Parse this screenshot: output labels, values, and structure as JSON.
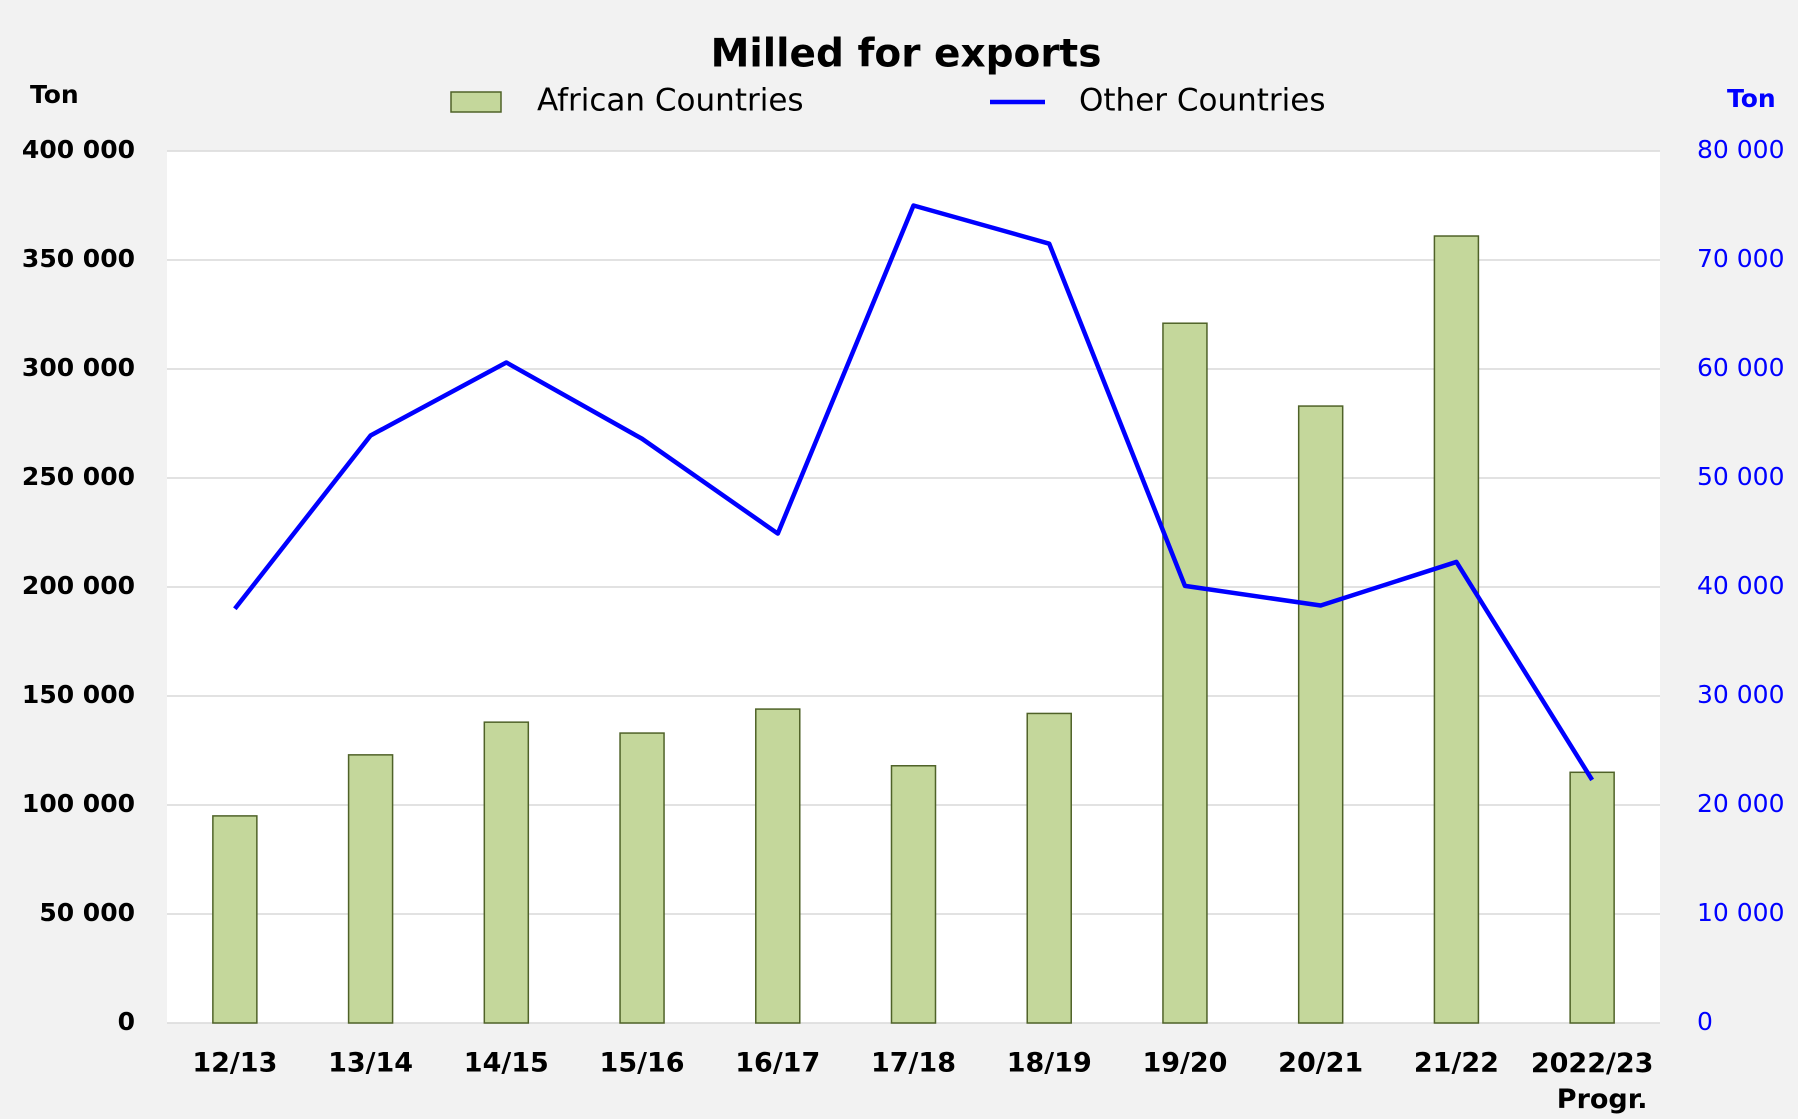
{
  "chart_data": {
    "type": "bar",
    "title": "Milled for exports",
    "y_label": "Ton",
    "y2_label": "Ton",
    "categories": [
      "12/13",
      "13/14",
      "14/15",
      "15/16",
      "16/17",
      "17/18",
      "18/19",
      "19/20",
      "20/21",
      "21/22",
      "2022/23 Progr."
    ],
    "series": [
      {
        "name": "African Countries",
        "type": "bar",
        "color": "#c4d79b",
        "edge": "#4f6228",
        "values": [
          95000,
          123000,
          138000,
          133000,
          144000,
          118000,
          142000,
          321000,
          283000,
          361000,
          115000
        ]
      },
      {
        "name": "Other Countries",
        "type": "line",
        "color": "#0000ff",
        "axis": "y2",
        "values": [
          38000,
          53900,
          60600,
          53600,
          44900,
          75000,
          71500,
          40100,
          38300,
          42300,
          22300
        ]
      }
    ],
    "ylim": [
      0,
      400000
    ],
    "yticks": [
      0,
      {
        "value": 50000,
        "label": "50 000"
      },
      {
        "value": 100000,
        "label": "100 000"
      },
      {
        "value": 150000,
        "label": "150 000"
      },
      {
        "value": 200000,
        "label": "200 000"
      },
      {
        "value": 250000,
        "label": "250 000"
      },
      {
        "value": 300000,
        "label": "300 000"
      },
      {
        "value": 350000,
        "label": "350 000"
      },
      {
        "value": 400000,
        "label": "400 000"
      }
    ],
    "y2lim": [
      0,
      80000
    ],
    "y2ticks": [
      0,
      {
        "value": 10000,
        "label": "10 000"
      },
      {
        "value": 20000,
        "label": "20 000"
      },
      {
        "value": 30000,
        "label": "30 000"
      },
      {
        "value": 40000,
        "label": "40 000"
      },
      {
        "value": 50000,
        "label": "50 000"
      },
      {
        "value": 60000,
        "label": "60 000"
      },
      {
        "value": 70000,
        "label": "70 000"
      },
      {
        "value": 80000,
        "label": "80 000"
      }
    ],
    "y2_color": "#0000ff",
    "grid": true,
    "legend": "top"
  }
}
